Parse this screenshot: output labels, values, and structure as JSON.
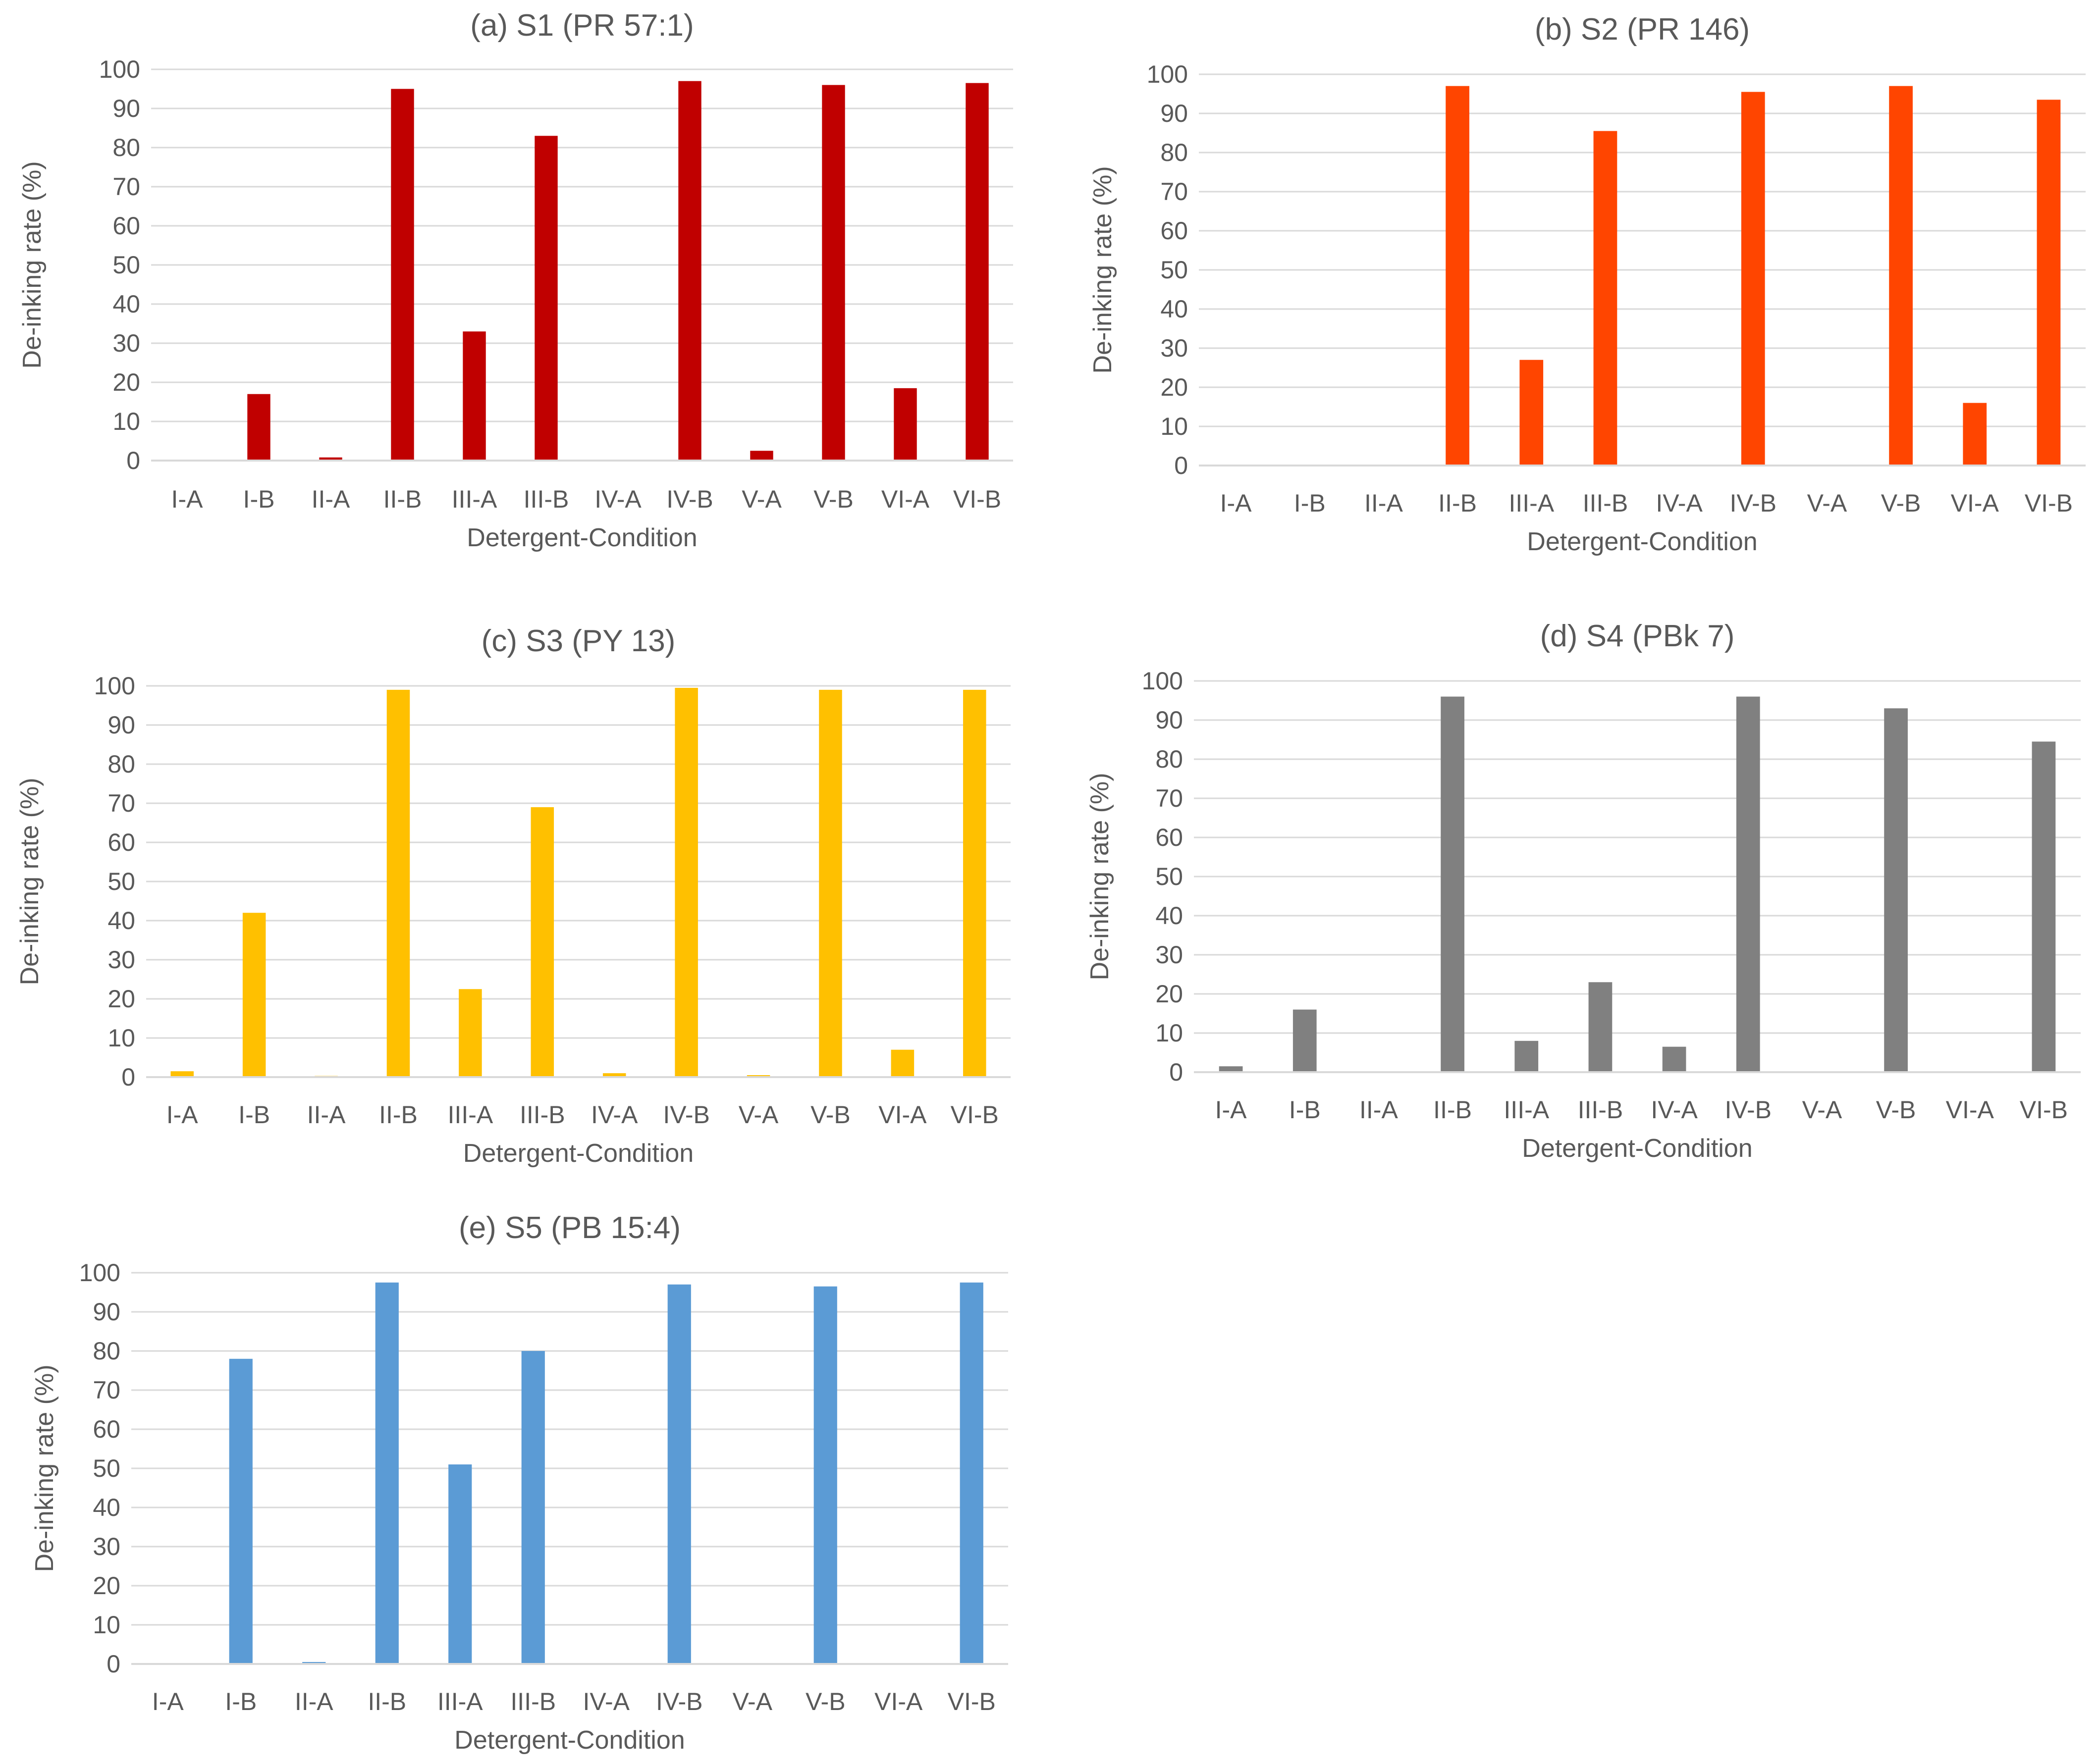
{
  "chart_data": [
    {
      "type": "bar",
      "title": "(a) S1 (PR 57:1)",
      "xlabel": "Detergent-Condition",
      "ylabel": "De-inking rate (%)",
      "ylim": [
        0,
        100
      ],
      "yticks": [
        0,
        10,
        20,
        30,
        40,
        50,
        60,
        70,
        80,
        90,
        100
      ],
      "grid": true,
      "color": "#C00000",
      "categories": [
        "I-A",
        "I-B",
        "II-A",
        "II-B",
        "III-A",
        "III-B",
        "IV-A",
        "IV-B",
        "V-A",
        "V-B",
        "VI-A",
        "VI-B"
      ],
      "values": [
        0,
        17,
        0.8,
        95,
        33,
        83,
        0,
        97,
        2.5,
        96,
        18.5,
        96.5
      ]
    },
    {
      "type": "bar",
      "title": "(b) S2 (PR 146)",
      "xlabel": "Detergent-Condition",
      "ylabel": "De-inking rate (%)",
      "ylim": [
        0,
        100
      ],
      "yticks": [
        0,
        10,
        20,
        30,
        40,
        50,
        60,
        70,
        80,
        90,
        100
      ],
      "grid": true,
      "color": "#FF4500",
      "categories": [
        "I-A",
        "I-B",
        "II-A",
        "II-B",
        "III-A",
        "III-B",
        "IV-A",
        "IV-B",
        "V-A",
        "V-B",
        "VI-A",
        "VI-B"
      ],
      "values": [
        0,
        0,
        0,
        97,
        27,
        85.5,
        0,
        95.5,
        0,
        97,
        16,
        93.5
      ]
    },
    {
      "type": "bar",
      "title": "(c) S3 (PY 13)",
      "xlabel": "Detergent-Condition",
      "ylabel": "De-inking rate (%)",
      "ylim": [
        0,
        100
      ],
      "yticks": [
        0,
        10,
        20,
        30,
        40,
        50,
        60,
        70,
        80,
        90,
        100
      ],
      "grid": true,
      "color": "#FFC000",
      "categories": [
        "I-A",
        "I-B",
        "II-A",
        "II-B",
        "III-A",
        "III-B",
        "IV-A",
        "IV-B",
        "V-A",
        "V-B",
        "VI-A",
        "VI-B"
      ],
      "values": [
        1.5,
        42,
        0.3,
        99,
        22.5,
        69,
        1,
        99.5,
        0.5,
        99,
        7,
        99
      ]
    },
    {
      "type": "bar",
      "title": "(d) S4 (PBk 7)",
      "xlabel": "Detergent-Condition",
      "ylabel": "De-inking rate (%)",
      "ylim": [
        0,
        100
      ],
      "yticks": [
        0,
        10,
        20,
        30,
        40,
        50,
        60,
        70,
        80,
        90,
        100
      ],
      "grid": true,
      "color": "#808080",
      "categories": [
        "I-A",
        "I-B",
        "II-A",
        "II-B",
        "III-A",
        "III-B",
        "IV-A",
        "IV-B",
        "V-A",
        "V-B",
        "VI-A",
        "VI-B"
      ],
      "values": [
        1.5,
        16,
        0,
        96,
        8,
        23,
        6.5,
        96,
        0,
        93,
        0,
        84.5
      ]
    },
    {
      "type": "bar",
      "title": "(e) S5 (PB 15:4)",
      "xlabel": "Detergent-Condition",
      "ylabel": "De-inking rate (%)",
      "ylim": [
        0,
        100
      ],
      "yticks": [
        0,
        10,
        20,
        30,
        40,
        50,
        60,
        70,
        80,
        90,
        100
      ],
      "grid": true,
      "color": "#5B9BD5",
      "categories": [
        "I-A",
        "I-B",
        "II-A",
        "II-B",
        "III-A",
        "III-B",
        "IV-A",
        "IV-B",
        "V-A",
        "V-B",
        "VI-A",
        "VI-B"
      ],
      "values": [
        0,
        78,
        0.5,
        97.5,
        51,
        80,
        0,
        97,
        0,
        96.5,
        0,
        97.5
      ]
    }
  ]
}
